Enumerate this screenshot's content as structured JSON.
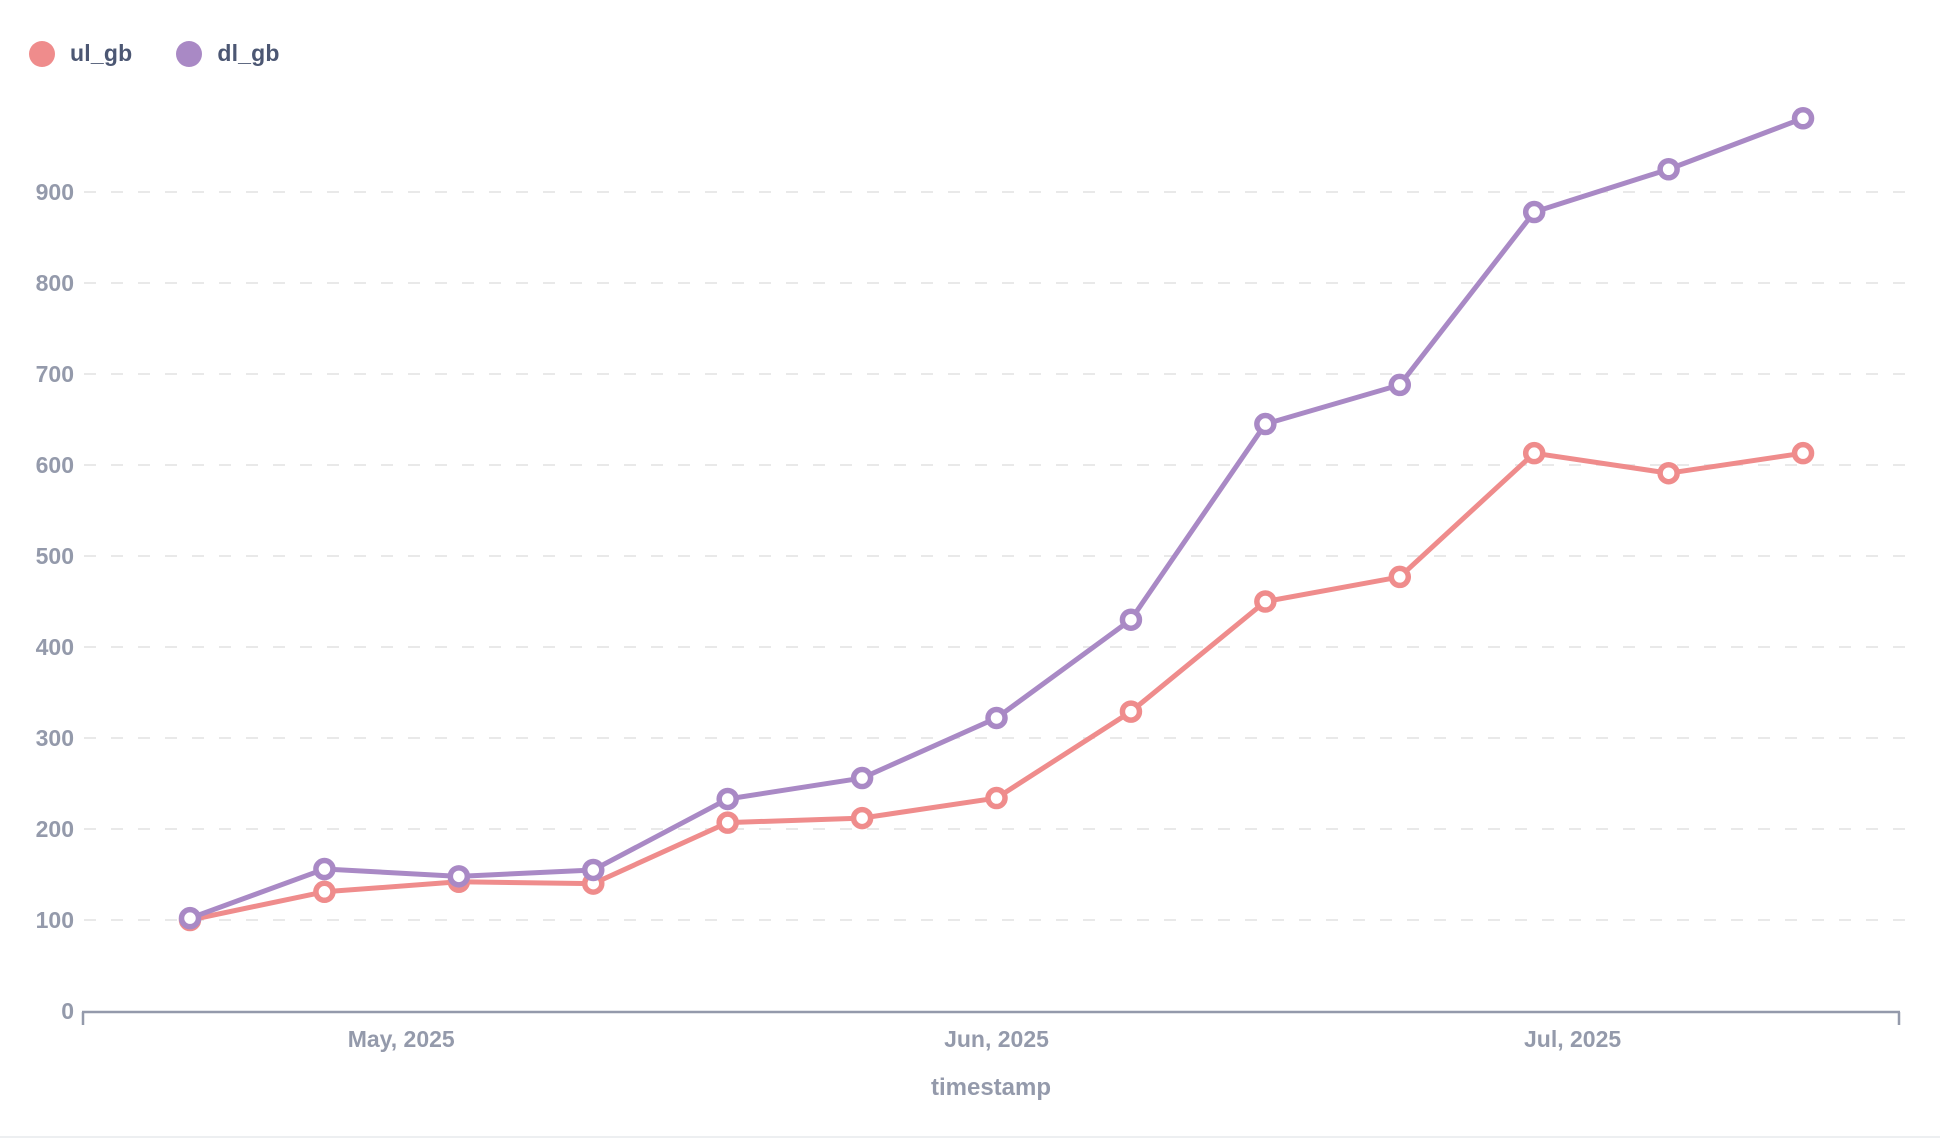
{
  "legend": {
    "items": [
      {
        "label": "ul_gb",
        "color": "#EF8C8C"
      },
      {
        "label": "dl_gb",
        "color": "#A989C5"
      }
    ],
    "position": "top-left"
  },
  "chart_data": {
    "type": "line",
    "x": [
      "2025-04-20",
      "2025-04-27",
      "2025-05-04",
      "2025-05-11",
      "2025-05-18",
      "2025-05-25",
      "2025-06-01",
      "2025-06-08",
      "2025-06-15",
      "2025-06-22",
      "2025-06-29",
      "2025-07-06",
      "2025-07-13"
    ],
    "series": [
      {
        "name": "ul_gb",
        "color": "#EF8C8C",
        "values": [
          100,
          131,
          142,
          140,
          207,
          212,
          234,
          329,
          450,
          477,
          613,
          591,
          613
        ]
      },
      {
        "name": "dl_gb",
        "color": "#A989C5",
        "values": [
          102,
          156,
          148,
          155,
          233,
          256,
          322,
          430,
          645,
          688,
          878,
          925,
          981
        ]
      }
    ],
    "title": "",
    "xlabel": "timestamp",
    "ylabel": "",
    "y_ticks": [
      0,
      100,
      200,
      300,
      400,
      500,
      600,
      700,
      800,
      900
    ],
    "x_tick_labels": [
      {
        "label": "May, 2025",
        "date": "2025-05-01"
      },
      {
        "label": "Jun, 2025",
        "date": "2025-06-01"
      },
      {
        "label": "Jul, 2025",
        "date": "2025-07-01"
      }
    ],
    "ylim": [
      0,
      1000
    ],
    "grid": "horizontal-dashed",
    "legend_position": "top-left",
    "marker": "open-circle",
    "axis_text_color": "#949AAB",
    "grid_color": "#e9e9e9",
    "axis_line_color": "#949AAB"
  }
}
